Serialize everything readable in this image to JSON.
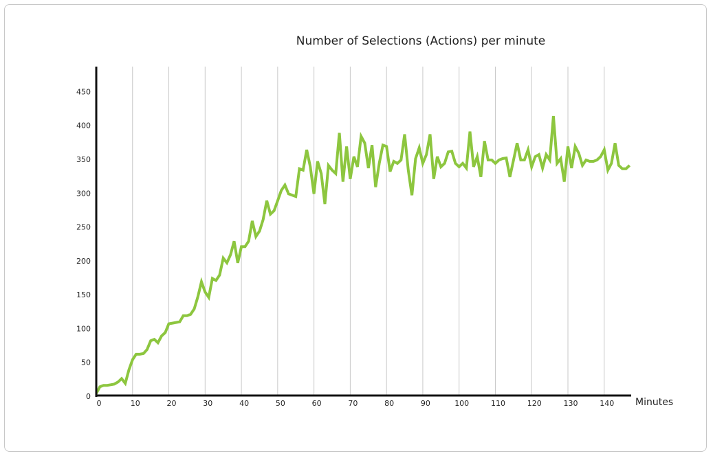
{
  "chart_data": {
    "type": "line",
    "title": "Number of Selections (Actions) per minute",
    "x_label": "Minutes",
    "x": [
      0,
      1,
      2,
      3,
      4,
      5,
      6,
      7,
      8,
      9,
      10,
      11,
      12,
      13,
      14,
      15,
      16,
      17,
      18,
      19,
      20,
      21,
      22,
      23,
      24,
      25,
      26,
      27,
      28,
      29,
      30,
      31,
      32,
      33,
      34,
      35,
      36,
      37,
      38,
      39,
      40,
      41,
      42,
      43,
      44,
      45,
      46,
      47,
      48,
      49,
      50,
      51,
      52,
      53,
      54,
      55,
      56,
      57,
      58,
      59,
      60,
      61,
      62,
      63,
      64,
      65,
      66,
      67,
      68,
      69,
      70,
      71,
      72,
      73,
      74,
      75,
      76,
      77,
      78,
      79,
      80,
      81,
      82,
      83,
      84,
      85,
      86,
      87,
      88,
      89,
      90,
      91,
      92,
      93,
      94,
      95,
      96,
      97,
      98,
      99,
      100,
      101,
      102,
      103,
      104,
      105,
      106,
      107,
      108,
      109,
      110,
      111,
      112,
      113,
      114,
      115,
      116,
      117,
      118,
      119,
      120,
      121,
      122,
      123,
      124,
      125,
      126,
      127,
      128,
      129,
      130,
      131,
      132,
      133,
      134,
      135,
      136,
      137,
      138,
      139,
      140,
      141,
      142,
      143,
      144,
      145,
      146,
      147
    ],
    "series": [
      {
        "name": "Selections",
        "color": "#8dc63f",
        "values": [
          5,
          15,
          17,
          17,
          18,
          19,
          22,
          27,
          20,
          40,
          55,
          63,
          63,
          64,
          70,
          83,
          85,
          80,
          90,
          95,
          108,
          109,
          110,
          111,
          120,
          120,
          122,
          130,
          148,
          170,
          155,
          147,
          175,
          172,
          180,
          205,
          198,
          210,
          230,
          198,
          222,
          222,
          230,
          260,
          237,
          245,
          262,
          290,
          270,
          275,
          290,
          305,
          313,
          300,
          298,
          296,
          337,
          335,
          365,
          340,
          300,
          348,
          330,
          285,
          342,
          335,
          330,
          390,
          318,
          370,
          322,
          355,
          340,
          385,
          375,
          338,
          372,
          310,
          345,
          372,
          370,
          333,
          348,
          345,
          350,
          388,
          335,
          298,
          352,
          368,
          345,
          358,
          388,
          322,
          355,
          340,
          345,
          362,
          363,
          345,
          340,
          345,
          338,
          392,
          340,
          355,
          325,
          378,
          350,
          350,
          345,
          350,
          352,
          353,
          325,
          350,
          375,
          350,
          350,
          365,
          340,
          355,
          358,
          338,
          358,
          350,
          415,
          345,
          352,
          318,
          370,
          338,
          370,
          360,
          342,
          350,
          348,
          348,
          350,
          355,
          365,
          335,
          345,
          375,
          342,
          337,
          337,
          342
        ]
      }
    ],
    "xlim": [
      0,
      148
    ],
    "ylim": [
      0,
      488
    ],
    "xticks": [
      0,
      10,
      20,
      30,
      40,
      50,
      60,
      70,
      80,
      90,
      100,
      110,
      120,
      130,
      140
    ],
    "yticks": [
      0,
      50,
      100,
      150,
      200,
      250,
      300,
      350,
      400,
      450
    ],
    "grid": "x"
  }
}
